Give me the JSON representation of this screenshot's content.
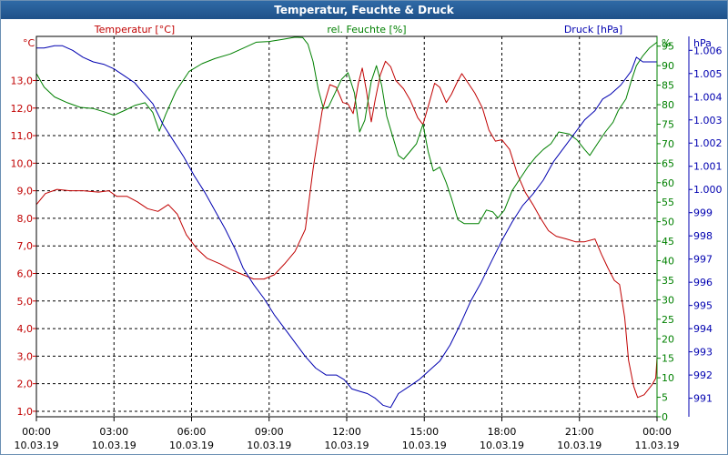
{
  "window": {
    "title": "Temperatur, Feuchte & Druck"
  },
  "chart_data": {
    "type": "line",
    "title": "Temperatur, Feuchte & Druck",
    "x_ticks": [
      {
        "time": "00:00",
        "date": "10.03.19"
      },
      {
        "time": "03:00",
        "date": "10.03.19"
      },
      {
        "time": "06:00",
        "date": "10.03.19"
      },
      {
        "time": "09:00",
        "date": "10.03.19"
      },
      {
        "time": "12:00",
        "date": "10.03.19"
      },
      {
        "time": "15:00",
        "date": "10.03.19"
      },
      {
        "time": "18:00",
        "date": "10.03.19"
      },
      {
        "time": "21:00",
        "date": "10.03.19"
      },
      {
        "time": "00:00",
        "date": "11.03.19"
      }
    ],
    "xlim_hours": [
      0,
      24
    ],
    "axes": {
      "temperature": {
        "label": "Temperatur [°C]",
        "unit": "°C",
        "ylim": [
          0.8,
          14.6
        ],
        "ticks": [
          "1,0",
          "2,0",
          "3,0",
          "4,0",
          "5,0",
          "6,0",
          "7,0",
          "8,0",
          "9,0",
          "10,0",
          "11,0",
          "12,0",
          "13,0"
        ]
      },
      "humidity": {
        "label": "rel. Feuchte [%]",
        "unit": "%",
        "ylim": [
          0,
          97.5
        ],
        "ticks": [
          "0",
          "5",
          "10",
          "15",
          "20",
          "25",
          "30",
          "35",
          "40",
          "45",
          "50",
          "55",
          "60",
          "65",
          "70",
          "75",
          "80",
          "85",
          "90",
          "95"
        ]
      },
      "pressure": {
        "label": "Druck [hPa]",
        "unit": "hPa",
        "ylim": [
          990.2,
          1006.6
        ],
        "ticks": [
          "991",
          "992",
          "993",
          "994",
          "995",
          "996",
          "997",
          "998",
          "999",
          "1.000",
          "1.001",
          "1.002",
          "1.003",
          "1.004",
          "1.005",
          "1.006"
        ]
      }
    },
    "colors": {
      "temperature": "#c00000",
      "humidity": "#008000",
      "pressure": "#0000b0",
      "grid": "#000000",
      "axis": "#000000"
    },
    "series": [
      {
        "name": "Temperatur",
        "axis": "temperature",
        "color": "#c00000",
        "points": [
          [
            0,
            8.5
          ],
          [
            0.35,
            8.9
          ],
          [
            0.8,
            9.05
          ],
          [
            1.3,
            9.0
          ],
          [
            1.8,
            9.0
          ],
          [
            2.4,
            8.95
          ],
          [
            2.8,
            9.0
          ],
          [
            3.1,
            8.8
          ],
          [
            3.5,
            8.8
          ],
          [
            3.9,
            8.6
          ],
          [
            4.3,
            8.35
          ],
          [
            4.7,
            8.25
          ],
          [
            5.1,
            8.5
          ],
          [
            5.45,
            8.15
          ],
          [
            5.8,
            7.4
          ],
          [
            6.2,
            6.9
          ],
          [
            6.6,
            6.55
          ],
          [
            7.1,
            6.35
          ],
          [
            7.5,
            6.15
          ],
          [
            8.0,
            5.95
          ],
          [
            8.4,
            5.8
          ],
          [
            8.8,
            5.8
          ],
          [
            9.2,
            5.95
          ],
          [
            9.6,
            6.35
          ],
          [
            10.0,
            6.8
          ],
          [
            10.4,
            7.6
          ],
          [
            10.7,
            9.8
          ],
          [
            11.05,
            11.9
          ],
          [
            11.35,
            12.85
          ],
          [
            11.6,
            12.75
          ],
          [
            11.85,
            12.2
          ],
          [
            12.05,
            12.15
          ],
          [
            12.25,
            11.8
          ],
          [
            12.45,
            12.9
          ],
          [
            12.6,
            13.45
          ],
          [
            12.75,
            12.7
          ],
          [
            12.95,
            11.5
          ],
          [
            13.1,
            12.3
          ],
          [
            13.3,
            13.2
          ],
          [
            13.5,
            13.7
          ],
          [
            13.7,
            13.5
          ],
          [
            13.9,
            13.0
          ],
          [
            14.2,
            12.7
          ],
          [
            14.45,
            12.3
          ],
          [
            14.75,
            11.65
          ],
          [
            14.95,
            11.4
          ],
          [
            15.15,
            12.05
          ],
          [
            15.4,
            12.9
          ],
          [
            15.6,
            12.75
          ],
          [
            15.85,
            12.2
          ],
          [
            16.05,
            12.5
          ],
          [
            16.25,
            12.9
          ],
          [
            16.45,
            13.25
          ],
          [
            16.7,
            12.9
          ],
          [
            16.95,
            12.55
          ],
          [
            17.25,
            12.0
          ],
          [
            17.5,
            11.2
          ],
          [
            17.75,
            10.8
          ],
          [
            18.0,
            10.85
          ],
          [
            18.3,
            10.5
          ],
          [
            18.6,
            9.6
          ],
          [
            18.9,
            8.95
          ],
          [
            19.2,
            8.5
          ],
          [
            19.5,
            8.0
          ],
          [
            19.8,
            7.55
          ],
          [
            20.1,
            7.35
          ],
          [
            20.5,
            7.25
          ],
          [
            20.85,
            7.15
          ],
          [
            21.2,
            7.15
          ],
          [
            21.6,
            7.25
          ],
          [
            21.85,
            6.7
          ],
          [
            22.1,
            6.2
          ],
          [
            22.35,
            5.75
          ],
          [
            22.55,
            5.6
          ],
          [
            22.75,
            4.4
          ],
          [
            22.9,
            2.85
          ],
          [
            23.1,
            1.9
          ],
          [
            23.25,
            1.5
          ],
          [
            23.5,
            1.6
          ],
          [
            23.8,
            1.95
          ],
          [
            23.95,
            2.2
          ],
          [
            24.0,
            2.95
          ]
        ]
      },
      {
        "name": "rel. Feuchte",
        "axis": "humidity",
        "color": "#008000",
        "points": [
          [
            0,
            88
          ],
          [
            0.3,
            84.5
          ],
          [
            0.7,
            82
          ],
          [
            1.2,
            80.5
          ],
          [
            1.7,
            79.3
          ],
          [
            2.2,
            79
          ],
          [
            2.6,
            78.2
          ],
          [
            3.0,
            77.3
          ],
          [
            3.4,
            78.5
          ],
          [
            3.8,
            79.8
          ],
          [
            4.2,
            80.5
          ],
          [
            4.5,
            78
          ],
          [
            4.75,
            73.2
          ],
          [
            5.0,
            77.5
          ],
          [
            5.4,
            83.5
          ],
          [
            5.9,
            88.5
          ],
          [
            6.4,
            90.5
          ],
          [
            6.9,
            91.8
          ],
          [
            7.5,
            93
          ],
          [
            8.0,
            94.5
          ],
          [
            8.5,
            96
          ],
          [
            9.0,
            96.2
          ],
          [
            9.5,
            96.7
          ],
          [
            10.0,
            97.3
          ],
          [
            10.3,
            97.2
          ],
          [
            10.5,
            95.5
          ],
          [
            10.7,
            91
          ],
          [
            10.9,
            84
          ],
          [
            11.1,
            79
          ],
          [
            11.3,
            79.5
          ],
          [
            11.55,
            83
          ],
          [
            11.8,
            86.5
          ],
          [
            12.05,
            88.2
          ],
          [
            12.3,
            83
          ],
          [
            12.5,
            73
          ],
          [
            12.7,
            76
          ],
          [
            12.95,
            86
          ],
          [
            13.15,
            90
          ],
          [
            13.35,
            85
          ],
          [
            13.55,
            77
          ],
          [
            13.75,
            72.5
          ],
          [
            14.0,
            67
          ],
          [
            14.2,
            66
          ],
          [
            14.45,
            68
          ],
          [
            14.7,
            70
          ],
          [
            14.95,
            75
          ],
          [
            15.15,
            68
          ],
          [
            15.35,
            63
          ],
          [
            15.6,
            64
          ],
          [
            15.85,
            60
          ],
          [
            16.05,
            56
          ],
          [
            16.3,
            50.5
          ],
          [
            16.55,
            49.5
          ],
          [
            16.8,
            49.5
          ],
          [
            17.1,
            49.5
          ],
          [
            17.4,
            53
          ],
          [
            17.65,
            52.5
          ],
          [
            17.85,
            51
          ],
          [
            18.1,
            53
          ],
          [
            18.4,
            58
          ],
          [
            18.7,
            61
          ],
          [
            19.0,
            64
          ],
          [
            19.3,
            66.5
          ],
          [
            19.6,
            68.5
          ],
          [
            19.9,
            70
          ],
          [
            20.2,
            73
          ],
          [
            20.6,
            72.5
          ],
          [
            20.9,
            71
          ],
          [
            21.2,
            68.5
          ],
          [
            21.4,
            67
          ],
          [
            21.7,
            70
          ],
          [
            22.0,
            73
          ],
          [
            22.3,
            75.5
          ],
          [
            22.5,
            78.5
          ],
          [
            22.8,
            81.5
          ],
          [
            23.0,
            86
          ],
          [
            23.2,
            90
          ],
          [
            23.45,
            92.5
          ],
          [
            23.7,
            94.5
          ],
          [
            24.0,
            96
          ]
        ]
      },
      {
        "name": "Druck",
        "axis": "pressure",
        "color": "#0000b0",
        "points": [
          [
            0,
            1006.1
          ],
          [
            0.3,
            1006.1
          ],
          [
            0.7,
            1006.2
          ],
          [
            1.0,
            1006.2
          ],
          [
            1.4,
            1006.0
          ],
          [
            1.8,
            1005.7
          ],
          [
            2.2,
            1005.5
          ],
          [
            2.6,
            1005.4
          ],
          [
            3.0,
            1005.2
          ],
          [
            3.4,
            1004.9
          ],
          [
            3.8,
            1004.6
          ],
          [
            4.1,
            1004.2
          ],
          [
            4.5,
            1003.7
          ],
          [
            4.9,
            1002.8
          ],
          [
            5.3,
            1002.1
          ],
          [
            5.7,
            1001.4
          ],
          [
            6.1,
            1000.6
          ],
          [
            6.5,
            999.9
          ],
          [
            6.9,
            999.1
          ],
          [
            7.3,
            998.3
          ],
          [
            7.7,
            997.4
          ],
          [
            8.0,
            996.6
          ],
          [
            8.4,
            995.9
          ],
          [
            8.8,
            995.3
          ],
          [
            9.2,
            994.6
          ],
          [
            9.6,
            994.0
          ],
          [
            10.0,
            993.4
          ],
          [
            10.4,
            992.8
          ],
          [
            10.8,
            992.3
          ],
          [
            11.2,
            992.0
          ],
          [
            11.6,
            992.0
          ],
          [
            11.9,
            991.8
          ],
          [
            12.2,
            991.4
          ],
          [
            12.5,
            991.3
          ],
          [
            12.8,
            991.2
          ],
          [
            13.1,
            991.0
          ],
          [
            13.4,
            990.7
          ],
          [
            13.7,
            990.6
          ],
          [
            14.0,
            991.2
          ],
          [
            14.4,
            991.5
          ],
          [
            14.8,
            991.8
          ],
          [
            15.2,
            992.2
          ],
          [
            15.6,
            992.6
          ],
          [
            16.0,
            993.3
          ],
          [
            16.4,
            994.2
          ],
          [
            16.8,
            995.2
          ],
          [
            17.2,
            996.0
          ],
          [
            17.6,
            996.9
          ],
          [
            18.0,
            997.8
          ],
          [
            18.4,
            998.6
          ],
          [
            18.8,
            999.3
          ],
          [
            19.2,
            999.8
          ],
          [
            19.6,
            1000.4
          ],
          [
            20.0,
            1001.2
          ],
          [
            20.4,
            1001.8
          ],
          [
            20.8,
            1002.4
          ],
          [
            21.2,
            1003.0
          ],
          [
            21.6,
            1003.4
          ],
          [
            21.9,
            1003.9
          ],
          [
            22.2,
            1004.1
          ],
          [
            22.6,
            1004.5
          ],
          [
            23.0,
            1005.1
          ],
          [
            23.2,
            1005.7
          ],
          [
            23.45,
            1005.5
          ],
          [
            23.7,
            1005.5
          ],
          [
            24.0,
            1005.5
          ]
        ]
      }
    ]
  }
}
